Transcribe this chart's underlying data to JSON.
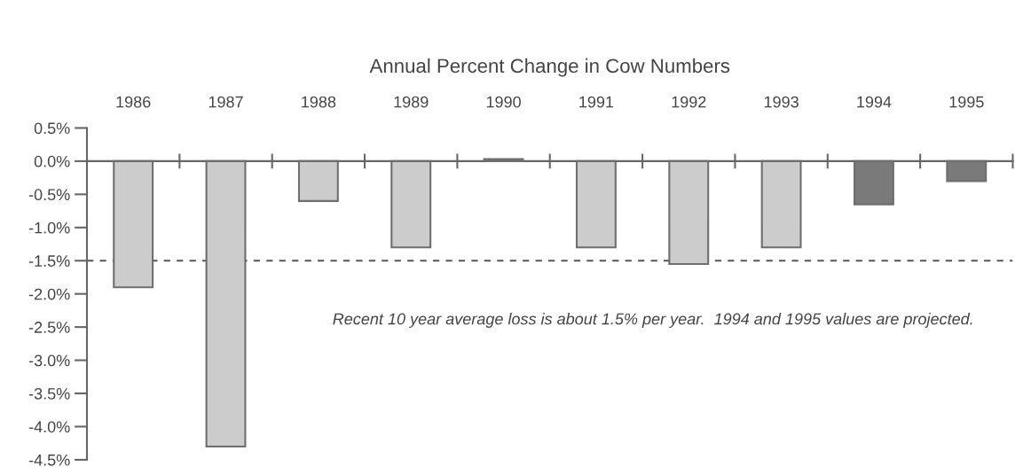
{
  "chart_data": {
    "type": "bar",
    "title": "Annual Percent Change in Cow Numbers",
    "categories": [
      "1986",
      "1987",
      "1988",
      "1989",
      "1990",
      "1991",
      "1992",
      "1993",
      "1994",
      "1995"
    ],
    "values": [
      -1.9,
      -4.3,
      -0.6,
      -1.3,
      0.03,
      -1.3,
      -1.55,
      -1.3,
      -0.65,
      -0.3
    ],
    "colors": [
      "#cccccc",
      "#cccccc",
      "#cccccc",
      "#cccccc",
      "#cccccc",
      "#cccccc",
      "#cccccc",
      "#cccccc",
      "#7a7a7a",
      "#7a7a7a"
    ],
    "ylim": [
      -4.5,
      0.5
    ],
    "yticks": [
      {
        "value": 0.5,
        "label": "0.5%"
      },
      {
        "value": 0,
        "label": "0.0%"
      },
      {
        "value": -0.5,
        "label": "-0.5%"
      },
      {
        "value": -1,
        "label": "-1.0%"
      },
      {
        "value": -1.5,
        "label": "-1.5%"
      },
      {
        "value": -2,
        "label": "-2.0%"
      },
      {
        "value": -2.5,
        "label": "-2.5%"
      },
      {
        "value": -3,
        "label": "-3.0%"
      },
      {
        "value": -3.5,
        "label": "-3.5%"
      },
      {
        "value": -4,
        "label": "-4.0%"
      },
      {
        "value": -4.5,
        "label": "-4.5%"
      }
    ],
    "ref_lines": [
      {
        "axis": "y",
        "value": -1.5,
        "color": "#555555",
        "line_style": "dashed"
      }
    ],
    "annotations": [
      "Recent 10 year average loss is about 1.5% per year.  1994 and 1995 values are projected."
    ],
    "grid": false,
    "legend": false
  }
}
